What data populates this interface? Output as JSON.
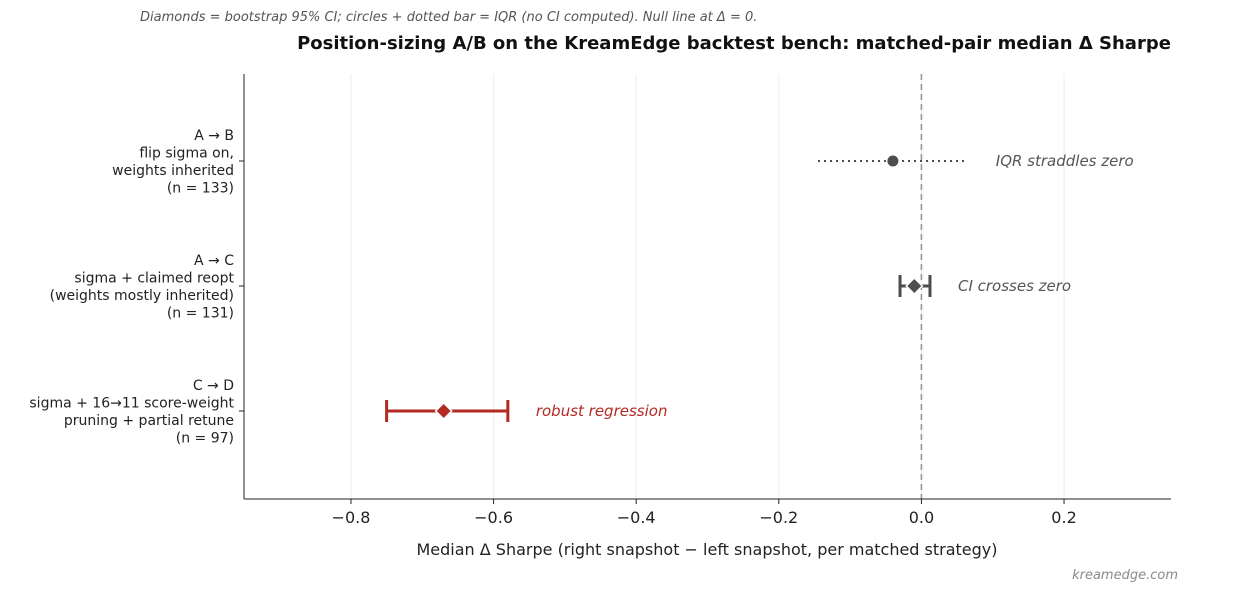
{
  "caption": "Diamonds = bootstrap 95% CI; circles + dotted bar = IQR (no CI computed). Null line at Δ = 0.",
  "source": "kreamedge.com",
  "chart_data": {
    "type": "forest",
    "title": "Position-sizing A/B on the KreamEdge backtest bench: matched-pair median Δ Sharpe",
    "xlabel": "Median Δ Sharpe  (right snapshot − left snapshot, per matched strategy)",
    "ylabel": "",
    "xlim": [
      -0.95,
      0.35
    ],
    "xticks": [
      -0.8,
      -0.6,
      -0.4,
      -0.2,
      0.0,
      0.2
    ],
    "xtick_labels": [
      "−0.8",
      "−0.6",
      "−0.4",
      "−0.2",
      "0.0",
      "0.2"
    ],
    "null_line": 0.0,
    "grid": "vertical",
    "rows": [
      {
        "label_lines": [
          "A → B",
          "flip sigma on,",
          "weights inherited",
          "(n = 133)"
        ],
        "median": -0.04,
        "low": -0.145,
        "high": 0.065,
        "interval": "IQR",
        "marker": "circle",
        "color": "#4d4d4d",
        "annotation": "IQR straddles zero",
        "annotation_color": "#555555"
      },
      {
        "label_lines": [
          "A → C",
          "sigma + claimed reopt",
          "(weights mostly inherited)",
          "(n = 131)"
        ],
        "median": -0.01,
        "low": -0.03,
        "high": 0.012,
        "interval": "CI",
        "marker": "diamond",
        "color": "#4d4d4d",
        "annotation": "CI crosses zero",
        "annotation_color": "#555555"
      },
      {
        "label_lines": [
          "C → D",
          "sigma + 16→11 score-weight",
          "pruning + partial retune",
          "(n = 97)"
        ],
        "median": -0.67,
        "low": -0.75,
        "high": -0.58,
        "interval": "CI",
        "marker": "diamond",
        "color": "#b22a22",
        "annotation": "robust regression",
        "annotation_color": "#b22a22"
      }
    ]
  }
}
